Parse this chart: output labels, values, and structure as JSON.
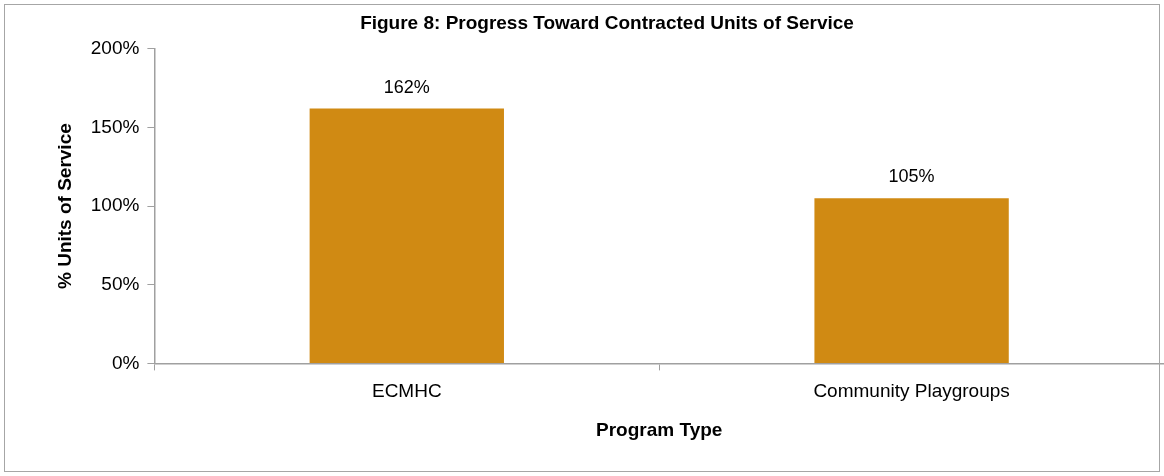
{
  "chart_data": {
    "type": "bar",
    "title": "Figure 8: Progress Toward Contracted Units of Service",
    "xlabel": "Program Type",
    "ylabel": "% Units of Service",
    "categories": [
      "ECMHC",
      "Community Playgroups"
    ],
    "values": [
      162,
      105
    ],
    "color": "#d08a13",
    "value_labels": [
      "162%",
      "105%"
    ],
    "ylim": [
      0,
      200
    ],
    "yticks": [
      {
        "value": 0,
        "label": "0%"
      },
      {
        "value": 50,
        "label": "50%"
      },
      {
        "value": 100,
        "label": "100%"
      },
      {
        "value": 150,
        "label": "150%"
      },
      {
        "value": 200,
        "label": "200%"
      }
    ]
  }
}
